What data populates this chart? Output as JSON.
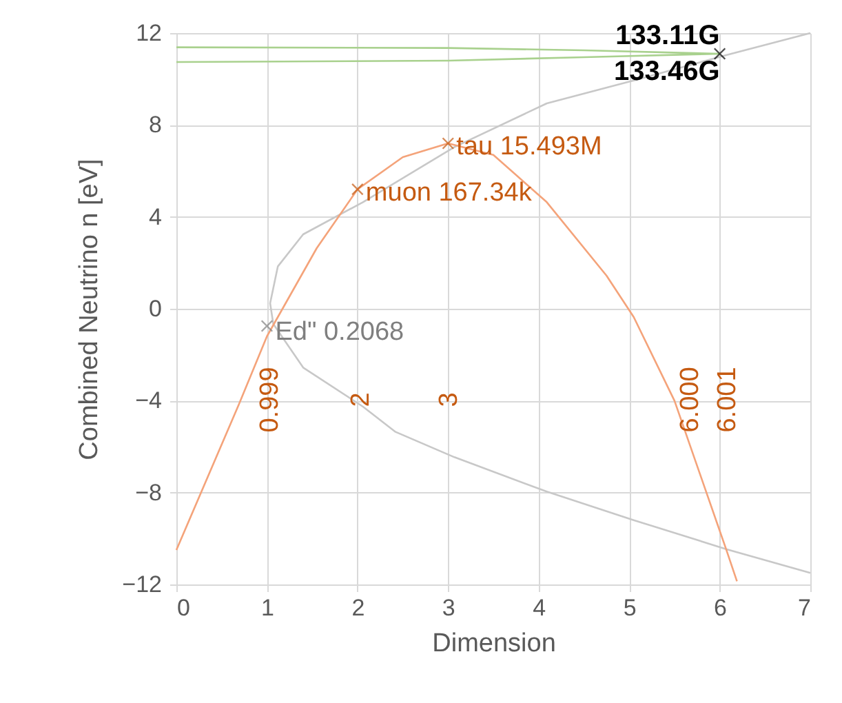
{
  "chart_data": {
    "type": "line",
    "xlabel": "Dimension",
    "ylabel": "Combined Neutrino n [eV]",
    "xlim": [
      0,
      7
    ],
    "xticks": [
      0,
      1,
      2,
      3,
      4,
      5,
      6,
      7
    ],
    "ylim": [
      -12,
      12
    ],
    "yticks": [
      -12,
      -8,
      -4,
      0,
      4,
      8,
      12
    ],
    "grid": true,
    "series": [
      {
        "color": "#c8c8c8",
        "marker": "none",
        "x": [
          7,
          6.07,
          5.05,
          4.09,
          3.07,
          2.42,
          2.06,
          1.4,
          1.07,
          1.035,
          1.12,
          1.4,
          2.06,
          3.07,
          4.09,
          5.05,
          6.07,
          7
        ],
        "values": [
          -11.5,
          -10.46,
          -9.2,
          -7.96,
          -6.46,
          -5.36,
          -4.26,
          -2.56,
          -0.66,
          0.24,
          1.84,
          3.24,
          4.64,
          7.04,
          8.94,
          9.94,
          11.04,
          12
        ]
      },
      {
        "color": "#f4a37a",
        "marker": "none",
        "x": [
          0,
          0.69,
          1,
          1.55,
          2,
          2.5,
          3,
          3.5,
          4.09,
          4.75,
          5.05,
          5.5,
          6.07,
          6.19
        ],
        "values": [
          -10.5,
          -4.16,
          -1.2,
          2.64,
          5.2,
          6.6,
          7.2,
          6.7,
          4.64,
          1.44,
          -0.36,
          -4,
          -10.46,
          -11.86
        ]
      },
      {
        "color": "#a9d18e",
        "marker": "none",
        "x": [
          0,
          3,
          4.5,
          6
        ],
        "values": [
          11.38,
          11.35,
          11.25,
          11.1
        ]
      },
      {
        "color": "#a9d18e",
        "marker": "none",
        "x": [
          0,
          3,
          4.5,
          6
        ],
        "values": [
          10.74,
          10.8,
          10.95,
          11.1
        ]
      },
      {
        "type": "scatter",
        "color": "#7f7f7f",
        "marker": "cross",
        "x": [
          1
        ],
        "values": [
          -0.75
        ]
      },
      {
        "type": "scatter",
        "color": "#c55a11",
        "marker": "cross",
        "x": [
          2,
          3
        ],
        "values": [
          5.2,
          7.2
        ]
      },
      {
        "type": "scatter",
        "color": "#000000",
        "marker": "cross",
        "x": [
          6
        ],
        "values": [
          11.1
        ]
      }
    ],
    "annotations": [
      {
        "text": "Ed\" 0.2068",
        "x": 1,
        "y": -0.75
      },
      {
        "text": "muon  167.34k",
        "x": 2,
        "y": 5.2
      },
      {
        "text": "tau 15.493M",
        "x": 3,
        "y": 7.2
      },
      {
        "text": "133.11G",
        "x": 6,
        "y": 11.1
      },
      {
        "text": "133.46G",
        "x": 6,
        "y": 11.1
      },
      "0.999",
      "2",
      "3",
      "6.000",
      "6.001"
    ]
  }
}
